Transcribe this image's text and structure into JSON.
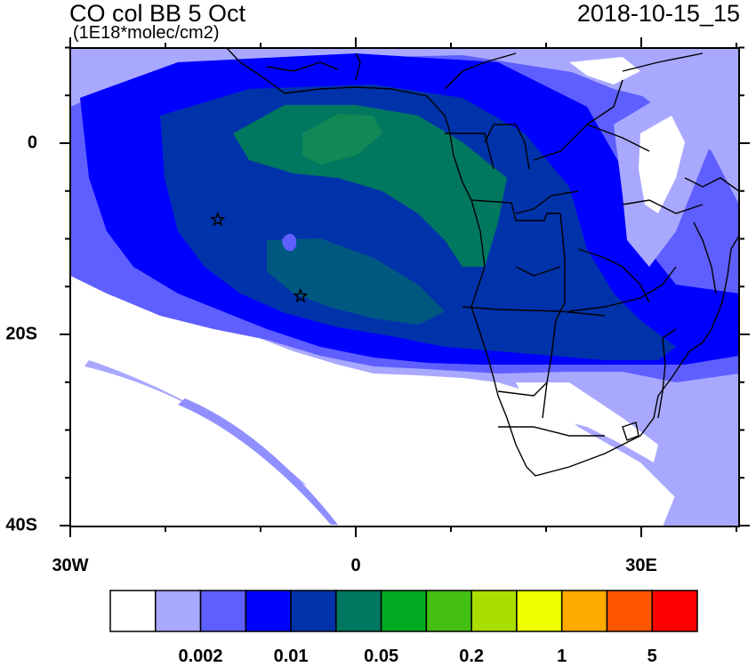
{
  "map": {
    "title": "CO col BB 5 Oct",
    "units": "(1E18*molec/cm2)",
    "timestamp": "2018-10-15_15",
    "x_tick_labels": [
      {
        "lon": -30,
        "text": "30W"
      },
      {
        "lon": 0,
        "text": "0"
      },
      {
        "lon": 30,
        "text": "30E"
      }
    ],
    "y_tick_labels": [
      {
        "lat": 0,
        "text": "0"
      },
      {
        "lat": -20,
        "text": "20S"
      },
      {
        "lat": -40,
        "text": "40S"
      }
    ],
    "markers": [
      {
        "symbol": "star",
        "lon": -14.5,
        "lat": -8
      },
      {
        "symbol": "star",
        "lon": -5.8,
        "lat": -16
      }
    ]
  },
  "colorbar": {
    "colors": [
      "#ffffff",
      "#a8a8ff",
      "#5f5fff",
      "#0000ff",
      "#0033aa",
      "#00775f",
      "#00aa22",
      "#44c012",
      "#aadd00",
      "#eeff00",
      "#ffaa00",
      "#ff5500",
      "#ff0000"
    ],
    "labels": [
      {
        "boundary": 2,
        "text": "0.002"
      },
      {
        "boundary": 4,
        "text": "0.01"
      },
      {
        "boundary": 6,
        "text": "0.05"
      },
      {
        "boundary": 8,
        "text": "0.2"
      },
      {
        "boundary": 10,
        "text": "1"
      },
      {
        "boundary": 12,
        "text": "5"
      }
    ]
  }
}
